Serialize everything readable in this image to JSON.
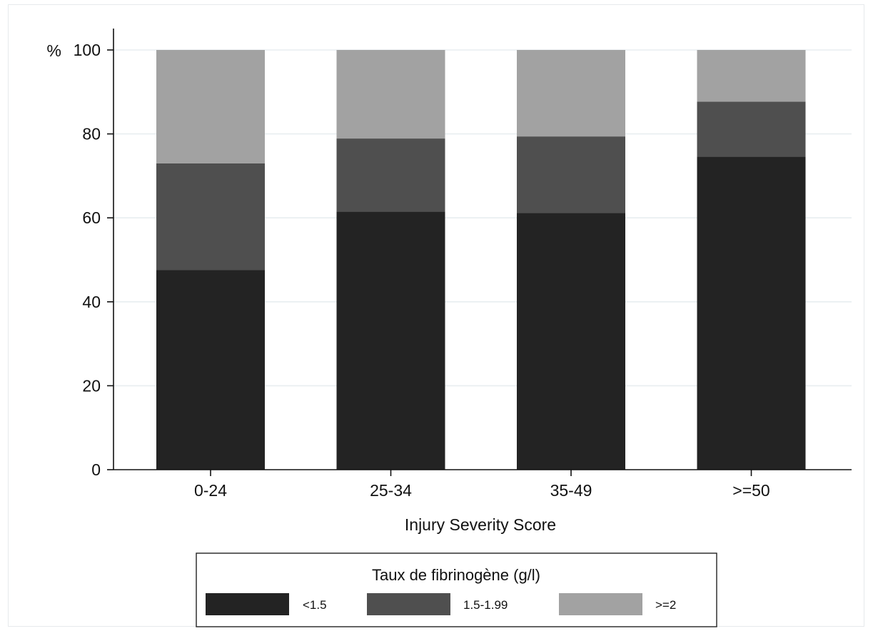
{
  "chart_data": {
    "type": "bar",
    "stacked": true,
    "categories": [
      "0-24",
      "25-34",
      "35-49",
      ">=50"
    ],
    "series": [
      {
        "name": "<1.5",
        "values": [
          47.6,
          61.5,
          61.2,
          74.6
        ],
        "color": "#232323"
      },
      {
        "name": "1.5-1.99",
        "values": [
          25.4,
          17.4,
          18.2,
          13.1
        ],
        "color": "#4f4f4f"
      },
      {
        "name": ">=2",
        "values": [
          27.0,
          21.1,
          20.6,
          12.3
        ],
        "color": "#a2a2a2"
      }
    ],
    "title": "",
    "xlabel": "Injury Severity Score",
    "ylabel": "",
    "y_unit_label": "%",
    "ylim": [
      0,
      100
    ],
    "yticks": [
      0,
      20,
      40,
      60,
      80,
      100
    ],
    "grid": true,
    "grid_color": "#e8eef0",
    "legend": {
      "title": "Taux de fibrinogène (g/l)",
      "position": "bottom",
      "entries": [
        "<1.5",
        "1.5-1.99",
        ">=2"
      ]
    }
  }
}
